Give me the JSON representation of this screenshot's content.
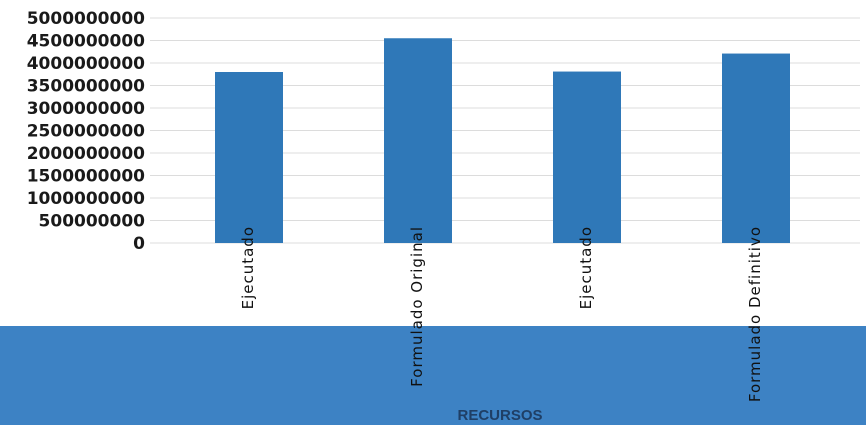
{
  "chart_data": {
    "type": "bar",
    "categories": [
      "Ejecutado",
      "Formulado Original",
      "Ejecutado",
      "Formulado Definitivo"
    ],
    "values": [
      3800000000,
      4550000000,
      3810000000,
      4210000000
    ],
    "title": "",
    "xlabel": "RECURSOS",
    "ylabel": "",
    "ylim": [
      0,
      5000000000
    ],
    "yticks": [
      0,
      500000000,
      1000000000,
      1500000000,
      2000000000,
      2500000000,
      3000000000,
      3500000000,
      4000000000,
      4500000000,
      5000000000
    ],
    "ytick_labels": [
      "0",
      "500000000",
      "1000000000",
      "1500000000",
      "2000000000",
      "2500000000",
      "3000000000",
      "3500000000",
      "4000000000",
      "4500000000",
      "5000000000"
    ],
    "grid": true,
    "legend": "none",
    "colors": {
      "bar": "#2f78b8",
      "band": "#3d82c4",
      "grid": "#dcdcdc"
    }
  }
}
